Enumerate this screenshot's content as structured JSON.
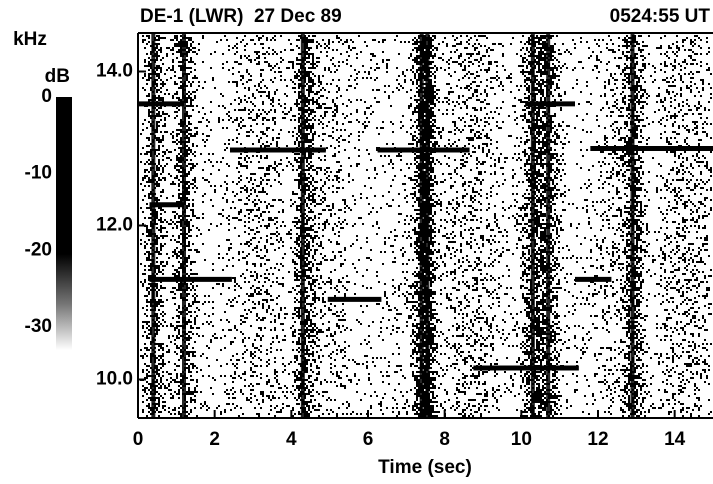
{
  "chart_data": {
    "type": "spectrogram",
    "title": "DE-1 (LWR)  27 Dec 89",
    "time_label": "0524:55 UT",
    "x_label": "Time (sec)",
    "y_label": "kHz",
    "xlim": [
      0,
      15
    ],
    "ylim": [
      9.5,
      14.5
    ],
    "xticks": [
      0,
      2,
      4,
      6,
      8,
      10,
      12,
      14
    ],
    "yticks": [
      {
        "value": 10,
        "label": "10.0"
      },
      {
        "value": 12,
        "label": "12.0"
      },
      {
        "value": 14,
        "label": "14.0"
      }
    ],
    "colorbar": {
      "label": "dB",
      "lim": [
        -33,
        0
      ],
      "ticks": [
        0,
        -10,
        -20,
        -30
      ]
    },
    "tones": [
      {
        "x": [
          0.0,
          1.2
        ],
        "y": 13.58
      },
      {
        "x": [
          2.4,
          4.9
        ],
        "y": 12.98
      },
      {
        "x": [
          6.25,
          8.65
        ],
        "y": 12.98
      },
      {
        "x": [
          10.1,
          11.4
        ],
        "y": 13.58
      },
      {
        "x": [
          11.8,
          15.0
        ],
        "y": 13.0
      },
      {
        "x": [
          0.3,
          1.2
        ],
        "y": 12.27
      },
      {
        "x": [
          0.3,
          2.45
        ],
        "y": 11.3
      },
      {
        "x": [
          4.95,
          6.35
        ],
        "y": 11.04
      },
      {
        "x": [
          8.75,
          11.5
        ],
        "y": 10.15
      },
      {
        "x": [
          11.4,
          12.35
        ],
        "y": 11.3
      }
    ],
    "bursts": [
      0.4,
      1.2,
      4.3,
      7.4,
      7.55,
      10.3,
      10.7,
      12.9
    ]
  }
}
